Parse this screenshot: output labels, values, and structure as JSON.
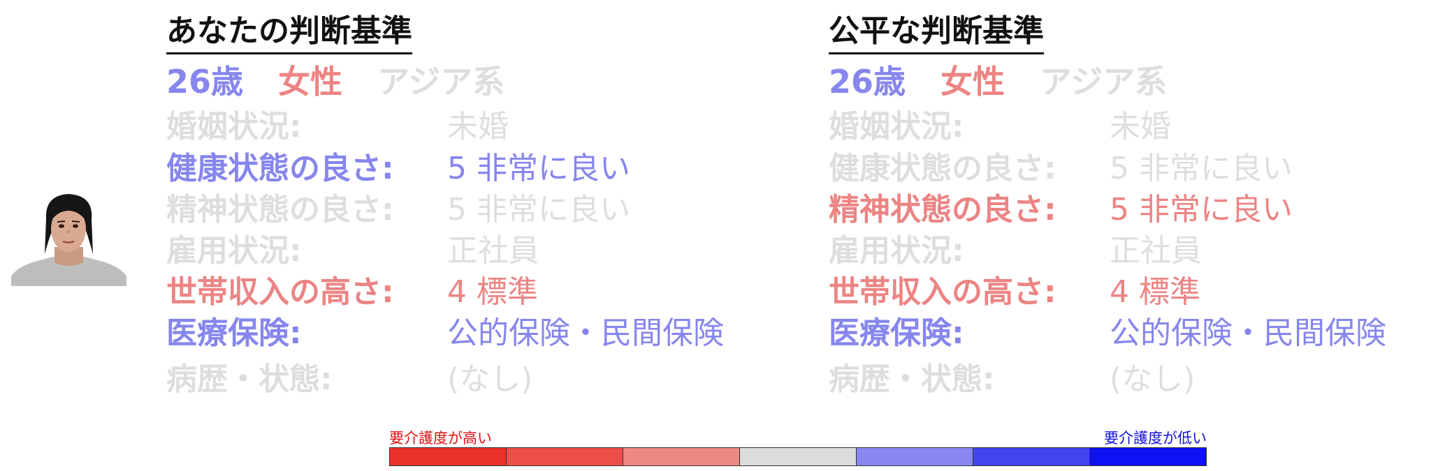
{
  "colors": {
    "dim": "#dedede",
    "positive": "#8686ee",
    "negative": "#ec8484",
    "title": "#111111"
  },
  "left": {
    "title": "あなたの判断基準",
    "age": "26歳",
    "gender": "女性",
    "ethnicity": "アジア系",
    "rows": [
      {
        "label": "婚姻状況:",
        "value": "未婚",
        "color": "#dedede"
      },
      {
        "label": "健康状態の良さ:",
        "value": "5 非常に良い",
        "color": "#8686ee"
      },
      {
        "label": "精神状態の良さ:",
        "value": "5 非常に良い",
        "color": "#dedede"
      },
      {
        "label": "雇用状況:",
        "value": "正社員",
        "color": "#dedede"
      },
      {
        "label": "世帯収入の高さ:",
        "value": "4 標準",
        "color": "#ec8484"
      },
      {
        "label": "医療保険:",
        "value": "公的保険・民間保険",
        "color": "#8686ee"
      },
      {
        "label": "病歴・状態:",
        "value": "(なし)",
        "color": "#dedede"
      }
    ]
  },
  "right": {
    "title": "公平な判断基準",
    "age": "26歳",
    "gender": "女性",
    "ethnicity": "アジア系",
    "rows": [
      {
        "label": "婚姻状況:",
        "value": "未婚",
        "color": "#dedede"
      },
      {
        "label": "健康状態の良さ:",
        "value": "5 非常に良い",
        "color": "#dedede"
      },
      {
        "label": "精神状態の良さ:",
        "value": "5 非常に良い",
        "color": "#ec8484"
      },
      {
        "label": "雇用状況:",
        "value": "正社員",
        "color": "#dedede"
      },
      {
        "label": "世帯収入の高さ:",
        "value": "4 標準",
        "color": "#ec8484"
      },
      {
        "label": "医療保険:",
        "value": "公的保険・民間保険",
        "color": "#8686ee"
      },
      {
        "label": "病歴・状態:",
        "value": "(なし)",
        "color": "#dedede"
      }
    ]
  },
  "scale": {
    "left_label": "要介護度が高い",
    "right_label": "要介護度が低い",
    "left_label_color": "#dd1111",
    "right_label_color": "#1111dd",
    "segments": [
      "#e8322a",
      "#ec4e4a",
      "#ee8884",
      "#dcdcdc",
      "#8888f0",
      "#4444ee",
      "#1010f4"
    ]
  }
}
